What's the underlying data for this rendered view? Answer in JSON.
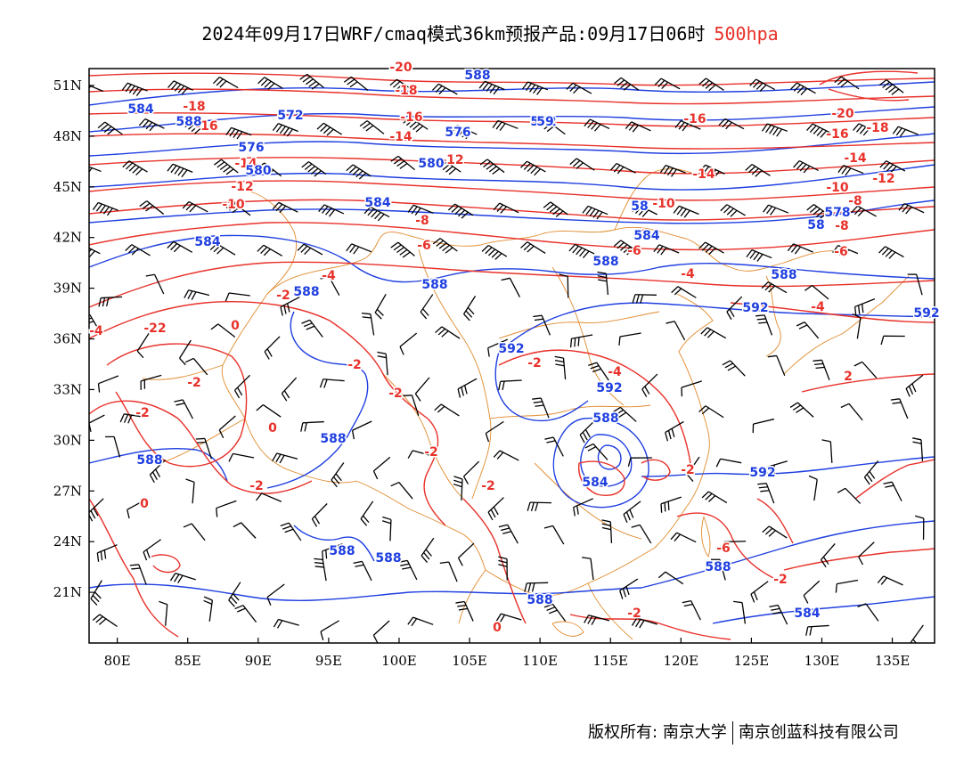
{
  "header": {
    "title": "2024年09月17日WRF/cmaq模式36km预报产品:09月17日06时",
    "level": "500hpa",
    "level_color": "#e8312a"
  },
  "map": {
    "lon_ticks": [
      "80E",
      "85E",
      "90E",
      "95E",
      "100E",
      "105E",
      "110E",
      "115E",
      "120E",
      "125E",
      "130E",
      "135E"
    ],
    "lon_values": [
      80,
      85,
      90,
      95,
      100,
      105,
      110,
      115,
      120,
      125,
      130,
      135
    ],
    "lat_ticks": [
      "51N",
      "48N",
      "45N",
      "42N",
      "39N",
      "36N",
      "33N",
      "30N",
      "27N",
      "24N",
      "21N"
    ],
    "lat_values": [
      51,
      48,
      45,
      42,
      39,
      36,
      33,
      30,
      27,
      24,
      21
    ],
    "lon_range": [
      78,
      138
    ],
    "lat_range": [
      18,
      52
    ],
    "colors": {
      "temperature": "#e8312a",
      "geopotential": "#1f3fe0",
      "boundary": "#e08a2c",
      "wind": "#000000"
    },
    "temperature_labels": [
      "-20",
      "-20",
      "-18",
      "-18",
      "-16",
      "-16",
      "-16",
      "-14",
      "-14",
      "-12",
      "-12",
      "-10",
      "-14",
      "-10",
      "-8",
      "-8",
      "-8",
      "-6",
      "-6",
      "-4",
      "-4",
      "-4",
      "-2",
      "-2",
      "-2",
      "-2",
      "-2",
      "-2",
      "-2",
      "-2",
      "-2",
      "-2",
      "-2",
      "0",
      "0",
      "0",
      "0",
      "-6",
      "-4",
      "-22",
      "-20",
      "-18",
      "-16",
      "-14",
      "-12",
      "-10",
      "-8",
      "-6",
      "-2",
      "-4",
      "2"
    ],
    "height_labels": [
      "588",
      "584",
      "588",
      "572",
      "576",
      "580",
      "584",
      "584",
      "588",
      "588",
      "588",
      "588",
      "588",
      "588",
      "588",
      "592",
      "592",
      "592",
      "592",
      "588",
      "588",
      "584",
      "572",
      "576",
      "580",
      "584",
      "588",
      "588",
      "584",
      "58",
      "578",
      "58",
      "592",
      "59"
    ]
  },
  "footer": {
    "copyright_label": "版权所有:",
    "org1": "南京大学",
    "org2": "南京创蓝科技有限公司"
  }
}
